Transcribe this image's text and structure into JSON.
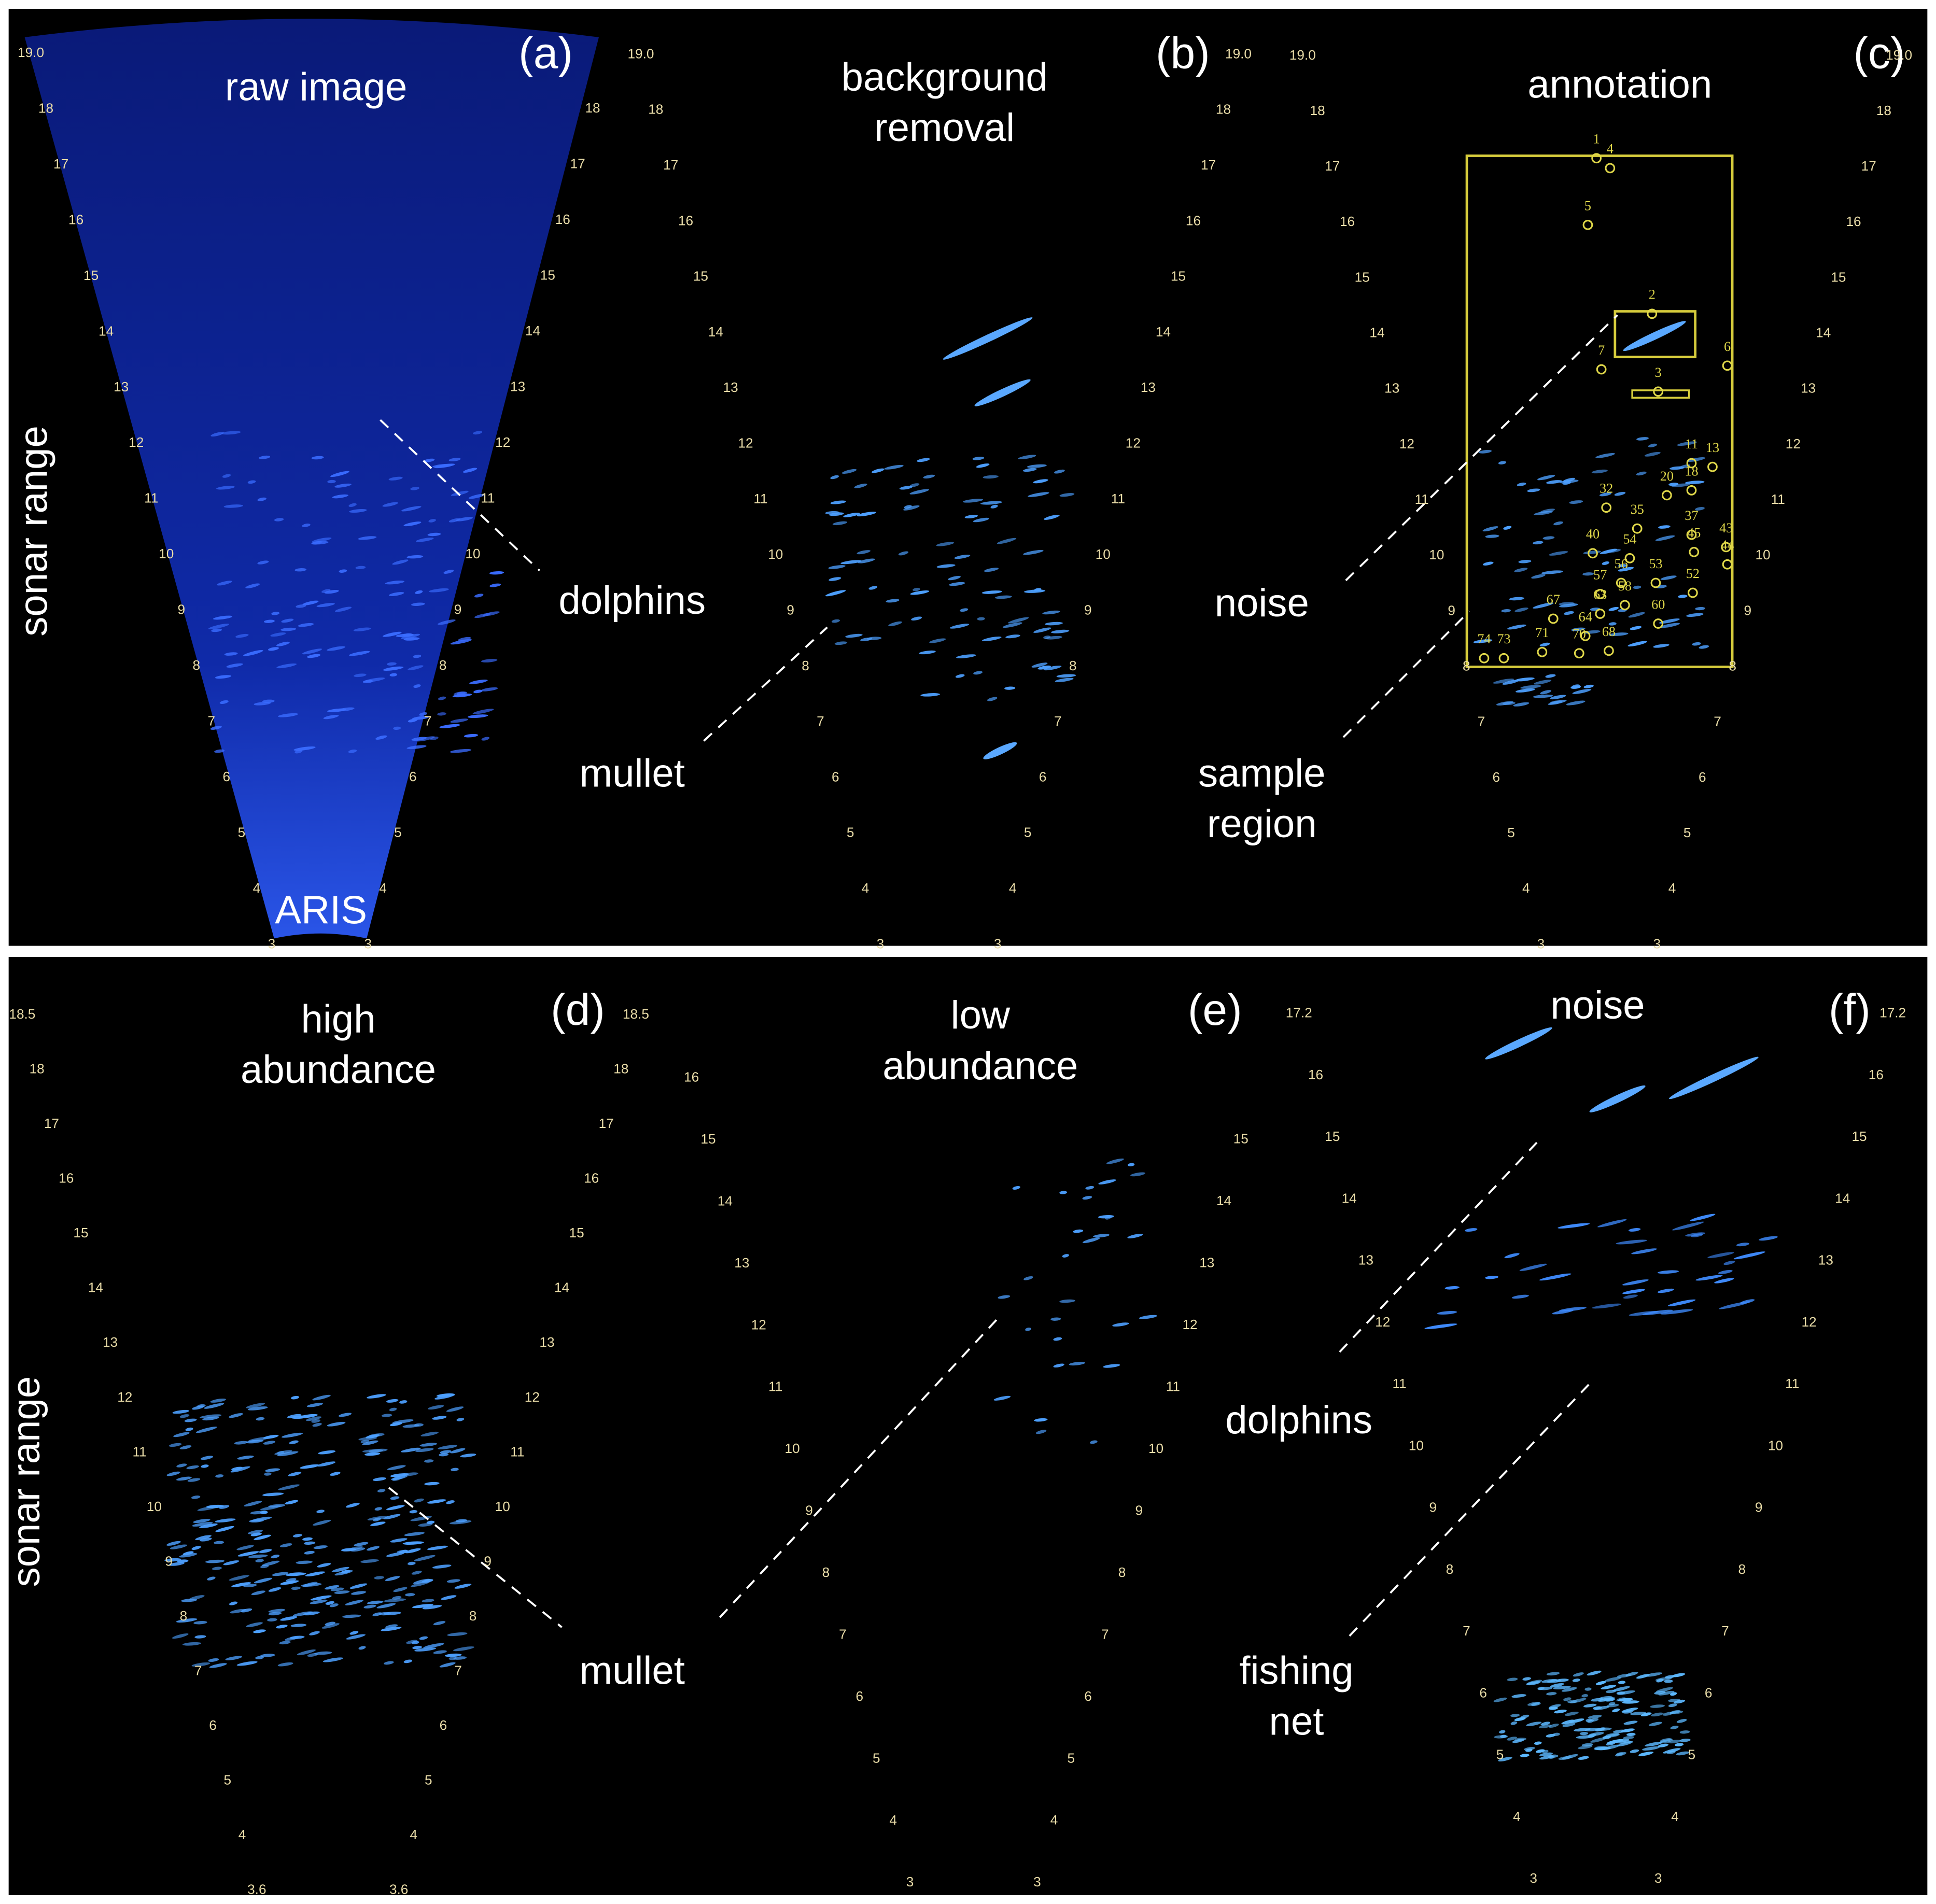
{
  "panels": [
    {
      "label": "(a)",
      "title": [
        "raw image"
      ],
      "scale_left": [
        "19.0",
        "18",
        "17",
        "16",
        "15",
        "14",
        "13",
        "12",
        "11",
        "10",
        "9",
        "8",
        "7",
        "6",
        "5",
        "4",
        "3"
      ],
      "scale_right": [
        "18",
        "17",
        "16",
        "15",
        "14",
        "13",
        "12",
        "11",
        "10",
        "9",
        "8",
        "7",
        "6",
        "5",
        "4",
        "3"
      ]
    },
    {
      "label": "(b)",
      "title": [
        "background",
        "removal"
      ],
      "scale_left": [
        "19.0",
        "18",
        "17",
        "16",
        "15",
        "14",
        "13",
        "12",
        "11",
        "10",
        "9",
        "8",
        "7",
        "6",
        "5",
        "4",
        "3"
      ],
      "scale_right": [
        "19.0",
        "18",
        "17",
        "16",
        "15",
        "14",
        "13",
        "12",
        "11",
        "10",
        "9",
        "8",
        "7",
        "6",
        "5",
        "4",
        "3"
      ]
    },
    {
      "label": "(c)",
      "title": [
        "annotation"
      ],
      "scale_left": [
        "19.0",
        "18",
        "17",
        "16",
        "15",
        "14",
        "13",
        "12",
        "11",
        "10",
        "9",
        "8",
        "7",
        "6",
        "5",
        "4",
        "3"
      ],
      "scale_right": [
        "19.0",
        "18",
        "17",
        "16",
        "15",
        "14",
        "13",
        "12",
        "11",
        "10",
        "9",
        "8",
        "7",
        "6",
        "5",
        "4",
        "3"
      ]
    },
    {
      "label": "(d)",
      "title": [
        "high",
        "abundance"
      ],
      "scale_left": [
        "18.5",
        "18",
        "17",
        "16",
        "15",
        "14",
        "13",
        "12",
        "11",
        "10",
        "9",
        "8",
        "7",
        "6",
        "5",
        "4",
        "3.6"
      ],
      "scale_right": [
        "18.5",
        "18",
        "17",
        "16",
        "15",
        "14",
        "13",
        "12",
        "11",
        "10",
        "9",
        "8",
        "7",
        "6",
        "5",
        "4",
        "3.6"
      ]
    },
    {
      "label": "(e)",
      "title": [
        "low",
        "abundance"
      ],
      "scale_left": [
        "16",
        "15",
        "14",
        "13",
        "12",
        "11",
        "10",
        "9",
        "8",
        "7",
        "6",
        "5",
        "4",
        "3"
      ],
      "scale_right": [
        "15",
        "14",
        "13",
        "12",
        "11",
        "10",
        "9",
        "8",
        "7",
        "6",
        "5",
        "4",
        "3"
      ]
    },
    {
      "label": "(f)",
      "title": [
        "noise"
      ],
      "scale_left": [
        "17.2",
        "16",
        "15",
        "14",
        "13",
        "12",
        "11",
        "10",
        "9",
        "8",
        "7",
        "6",
        "5",
        "4",
        "3"
      ],
      "scale_right": [
        "17.2",
        "16",
        "15",
        "14",
        "13",
        "12",
        "11",
        "10",
        "9",
        "8",
        "7",
        "6",
        "5",
        "4",
        "3"
      ]
    }
  ],
  "side_labels": [
    "sonar range",
    "sonar range"
  ],
  "device": "ARIS",
  "callouts": [
    {
      "lines": [
        "dolphins"
      ]
    },
    {
      "lines": [
        "mullet"
      ]
    },
    {
      "lines": [
        "noise"
      ]
    },
    {
      "lines": [
        "sample",
        "region"
      ]
    },
    {
      "lines": [
        "mullet"
      ]
    },
    {
      "lines": [
        "dolphins"
      ]
    },
    {
      "lines": [
        "fishing",
        "net"
      ]
    }
  ],
  "annotation_ids": [
    "1",
    "2",
    "3",
    "4",
    "5",
    "6",
    "7",
    "11",
    "13",
    "18",
    "20",
    "32",
    "35",
    "37",
    "40",
    "43",
    "44",
    "45",
    "52",
    "53",
    "54",
    "56",
    "57",
    "58",
    "60",
    "63",
    "64",
    "67",
    "68",
    "70",
    "71",
    "73",
    "74"
  ]
}
